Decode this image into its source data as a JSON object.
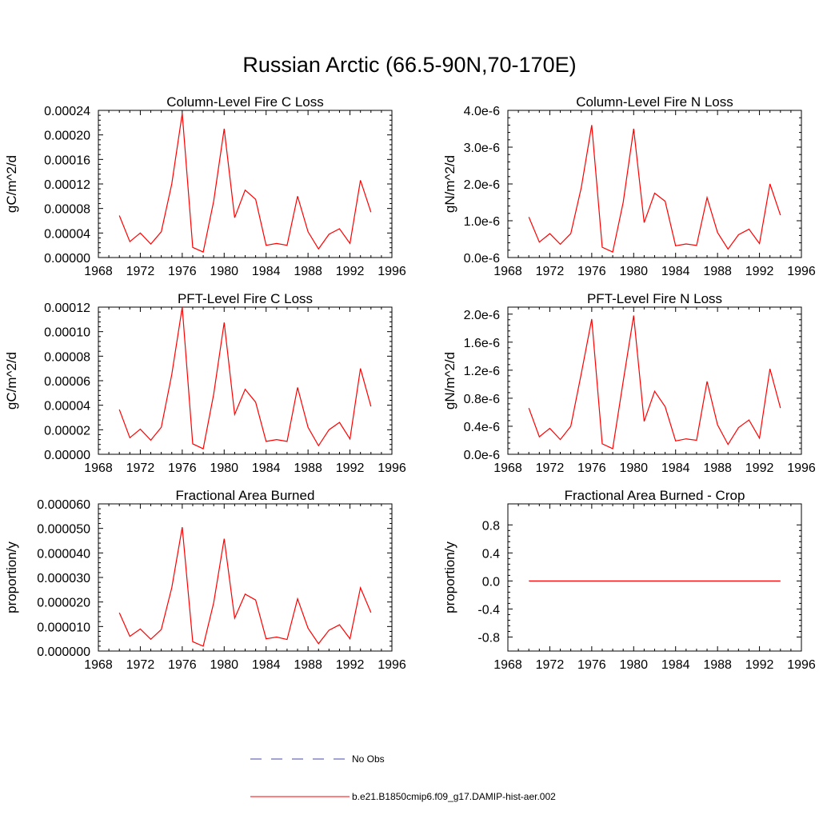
{
  "figure": {
    "title": "Russian Arctic (66.5-90N,70-170E)",
    "series_color": "#ff0000",
    "obs_color": "#4a4aa8",
    "legend": {
      "obs_label": "No Obs",
      "model_label": "b.e21.B1850cmip6.f09_g17.DAMIP-hist-aer.002"
    }
  },
  "chart_data": [
    {
      "type": "line",
      "title": "Column-Level Fire C Loss",
      "xlabel": "",
      "ylabel": "gC/m^2/d",
      "xlim": [
        1968,
        1996
      ],
      "ylim": [
        0,
        0.00024
      ],
      "grid": false,
      "xticks": [
        1968,
        1972,
        1976,
        1980,
        1984,
        1988,
        1992,
        1996
      ],
      "xtick_labels": [
        "1968",
        "1972",
        "1976",
        "1980",
        "1984",
        "1988",
        "1992",
        "1996"
      ],
      "yticks": [
        0,
        4e-05,
        8e-05,
        0.00012,
        0.00016,
        0.0002,
        0.00024
      ],
      "ytick_labels": [
        "0.00000",
        "0.00004",
        "0.00008",
        "0.00012",
        "0.00016",
        "0.00020",
        "0.00024"
      ],
      "x": [
        1970,
        1971,
        1972,
        1973,
        1974,
        1975,
        1976,
        1977,
        1978,
        1979,
        1980,
        1981,
        1982,
        1983,
        1984,
        1985,
        1986,
        1987,
        1988,
        1989,
        1990,
        1991,
        1992,
        1993,
        1994
      ],
      "values": [
        6.85e-05,
        2.6e-05,
        4e-05,
        2.2e-05,
        4.2e-05,
        0.00012,
        0.000235,
        1.65e-05,
        9e-06,
        9.2e-05,
        0.00021,
        6.5e-05,
        0.00011,
        9.5e-05,
        2e-05,
        2.3e-05,
        2e-05,
        0.0001,
        4.2e-05,
        1.4e-05,
        3.8e-05,
        4.7e-05,
        2.3e-05,
        0.000126,
        7.4e-05
      ]
    },
    {
      "type": "line",
      "title": "Column-Level Fire N Loss",
      "xlabel": "",
      "ylabel": "gN/m^2/d",
      "xlim": [
        1968,
        1996
      ],
      "ylim": [
        0,
        4e-06
      ],
      "grid": false,
      "xticks": [
        1968,
        1972,
        1976,
        1980,
        1984,
        1988,
        1992,
        1996
      ],
      "xtick_labels": [
        "1968",
        "1972",
        "1976",
        "1980",
        "1984",
        "1988",
        "1992",
        "1996"
      ],
      "yticks": [
        0,
        1e-06,
        2e-06,
        3e-06,
        4e-06
      ],
      "ytick_labels": [
        "0.0e-6",
        "1.0e-6",
        "2.0e-6",
        "3.0e-6",
        "4.0e-6"
      ],
      "x": [
        1970,
        1971,
        1972,
        1973,
        1974,
        1975,
        1976,
        1977,
        1978,
        1979,
        1980,
        1981,
        1982,
        1983,
        1984,
        1985,
        1986,
        1987,
        1988,
        1989,
        1990,
        1991,
        1992,
        1993,
        1994
      ],
      "values": [
        1.1e-06,
        4.2e-07,
        6.5e-07,
        3.6e-07,
        6.5e-07,
        1.9e-06,
        3.6e-06,
        2.8e-07,
        1.5e-07,
        1.5e-06,
        3.5e-06,
        9.5e-07,
        1.75e-06,
        1.53e-06,
        3.2e-07,
        3.7e-07,
        3.3e-07,
        1.63e-06,
        6.8e-07,
        2.3e-07,
        6.2e-07,
        7.7e-07,
        3.8e-07,
        2e-06,
        1.15e-06
      ]
    },
    {
      "type": "line",
      "title": "PFT-Level Fire C Loss",
      "xlabel": "",
      "ylabel": "gC/m^2/d",
      "xlim": [
        1968,
        1996
      ],
      "ylim": [
        0,
        0.00012
      ],
      "grid": false,
      "xticks": [
        1968,
        1972,
        1976,
        1980,
        1984,
        1988,
        1992,
        1996
      ],
      "xtick_labels": [
        "1968",
        "1972",
        "1976",
        "1980",
        "1984",
        "1988",
        "1992",
        "1996"
      ],
      "yticks": [
        0,
        2e-05,
        4e-05,
        6e-05,
        8e-05,
        0.0001,
        0.00012
      ],
      "ytick_labels": [
        "0.00000",
        "0.00002",
        "0.00004",
        "0.00006",
        "0.00008",
        "0.00010",
        "0.00012"
      ],
      "x": [
        1970,
        1971,
        1972,
        1973,
        1974,
        1975,
        1976,
        1977,
        1978,
        1979,
        1980,
        1981,
        1982,
        1983,
        1984,
        1985,
        1986,
        1987,
        1988,
        1989,
        1990,
        1991,
        1992,
        1993,
        1994
      ],
      "values": [
        3.65e-05,
        1.35e-05,
        2.05e-05,
        1.15e-05,
        2.2e-05,
        6.5e-05,
        0.00012,
        8.5e-06,
        4.5e-06,
        4.9e-05,
        0.0001075,
        3.25e-05,
        5.3e-05,
        4.25e-05,
        1.05e-05,
        1.2e-05,
        1.05e-05,
        5.45e-05,
        2.2e-05,
        7e-06,
        2e-05,
        2.6e-05,
        1.25e-05,
        7e-05,
        3.9e-05
      ]
    },
    {
      "type": "line",
      "title": "PFT-Level Fire N Loss",
      "xlabel": "",
      "ylabel": "gN/m^2/d",
      "xlim": [
        1968,
        1996
      ],
      "ylim": [
        0,
        2.1e-06
      ],
      "grid": false,
      "xticks": [
        1968,
        1972,
        1976,
        1980,
        1984,
        1988,
        1992,
        1996
      ],
      "xtick_labels": [
        "1968",
        "1972",
        "1976",
        "1980",
        "1984",
        "1988",
        "1992",
        "1996"
      ],
      "yticks": [
        0,
        4e-07,
        8e-07,
        1.2e-06,
        1.6e-06,
        2e-06
      ],
      "ytick_labels": [
        "0.0e-6",
        "0.4e-6",
        "0.8e-6",
        "1.2e-6",
        "1.6e-6",
        "2.0e-6"
      ],
      "x": [
        1970,
        1971,
        1972,
        1973,
        1974,
        1975,
        1976,
        1977,
        1978,
        1979,
        1980,
        1981,
        1982,
        1983,
        1984,
        1985,
        1986,
        1987,
        1988,
        1989,
        1990,
        1991,
        1992,
        1993,
        1994
      ],
      "values": [
        6.6e-07,
        2.5e-07,
        3.7e-07,
        2.1e-07,
        4e-07,
        1.15e-06,
        1.93e-06,
        1.5e-07,
        8e-08,
        1.04e-06,
        1.98e-06,
        4.7e-07,
        9e-07,
        6.8e-07,
        1.9e-07,
        2.2e-07,
        2e-07,
        1.04e-06,
        4.2e-07,
        1.4e-07,
        3.8e-07,
        4.9e-07,
        2.3e-07,
        1.22e-06,
        6.6e-07
      ]
    },
    {
      "type": "line",
      "title": "Fractional Area Burned",
      "xlabel": "",
      "ylabel": "proportion/y",
      "xlim": [
        1968,
        1996
      ],
      "ylim": [
        0,
        6e-05
      ],
      "grid": false,
      "xticks": [
        1968,
        1972,
        1976,
        1980,
        1984,
        1988,
        1992,
        1996
      ],
      "xtick_labels": [
        "1968",
        "1972",
        "1976",
        "1980",
        "1984",
        "1988",
        "1992",
        "1996"
      ],
      "yticks": [
        0,
        1e-05,
        2e-05,
        3e-05,
        4e-05,
        5e-05,
        6e-05
      ],
      "ytick_labels": [
        "0.000000",
        "0.000010",
        "0.000020",
        "0.000030",
        "0.000040",
        "0.000050",
        "0.000060"
      ],
      "x": [
        1970,
        1971,
        1972,
        1973,
        1974,
        1975,
        1976,
        1977,
        1978,
        1979,
        1980,
        1981,
        1982,
        1983,
        1984,
        1985,
        1986,
        1987,
        1988,
        1989,
        1990,
        1991,
        1992,
        1993,
        1994
      ],
      "values": [
        1.56e-05,
        6e-06,
        9e-06,
        4.8e-06,
        8.8e-06,
        2.58e-05,
        5.05e-05,
        3.8e-06,
        2e-06,
        1.97e-05,
        4.58e-05,
        1.34e-05,
        2.32e-05,
        2.08e-05,
        5e-06,
        5.7e-06,
        4.7e-06,
        2.13e-05,
        9.3e-06,
        3e-06,
        8.5e-06,
        1.07e-05,
        5e-06,
        2.58e-05,
        1.57e-05
      ]
    },
    {
      "type": "line",
      "title": "Fractional Area Burned - Crop",
      "xlabel": "",
      "ylabel": "proportion/y",
      "xlim": [
        1968,
        1996
      ],
      "ylim": [
        -1,
        1.1
      ],
      "grid": false,
      "xticks": [
        1968,
        1972,
        1976,
        1980,
        1984,
        1988,
        1992,
        1996
      ],
      "xtick_labels": [
        "1968",
        "1972",
        "1976",
        "1980",
        "1984",
        "1988",
        "1992",
        "1996"
      ],
      "yticks": [
        -0.8,
        -0.4,
        0,
        0.4,
        0.8
      ],
      "ytick_labels": [
        "-0.8",
        "-0.4",
        "0.0",
        "0.4",
        "0.8"
      ],
      "x": [
        1970,
        1971,
        1972,
        1973,
        1974,
        1975,
        1976,
        1977,
        1978,
        1979,
        1980,
        1981,
        1982,
        1983,
        1984,
        1985,
        1986,
        1987,
        1988,
        1989,
        1990,
        1991,
        1992,
        1993,
        1994
      ],
      "values": [
        0,
        0,
        0,
        0,
        0,
        0,
        0,
        0,
        0,
        0,
        0,
        0,
        0,
        0,
        0,
        0,
        0,
        0,
        0,
        0,
        0,
        0,
        0,
        0,
        0
      ]
    }
  ]
}
